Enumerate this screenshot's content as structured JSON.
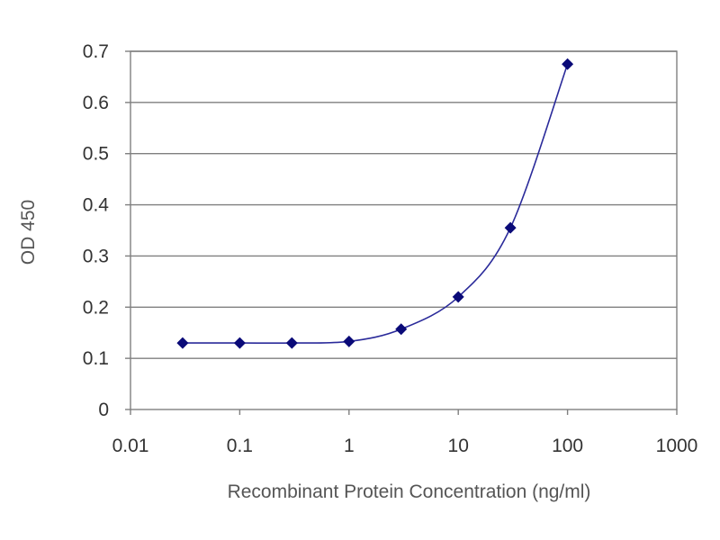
{
  "chart_data": {
    "type": "scatter",
    "title": "",
    "xlabel": "Recombinant Protein Concentration (ng/ml)",
    "ylabel": "OD 450",
    "x_scale": "log",
    "xlim": [
      0.01,
      1000
    ],
    "ylim": [
      0,
      0.7
    ],
    "x_ticks": [
      0.01,
      0.1,
      1,
      10,
      100,
      1000
    ],
    "x_tick_labels": [
      "0.01",
      "0.1",
      "1",
      "10",
      "100",
      "1000"
    ],
    "y_ticks": [
      0,
      0.1,
      0.2,
      0.3,
      0.4,
      0.5,
      0.6,
      0.7
    ],
    "y_tick_labels": [
      "0",
      "0.1",
      "0.2",
      "0.3",
      "0.4",
      "0.5",
      "0.6",
      "0.7"
    ],
    "grid": "horizontal",
    "legend": "none",
    "fit_line": "smooth curve through points",
    "series": [
      {
        "x": [
          0.03,
          0.1,
          0.3,
          1,
          3,
          10,
          30,
          100
        ],
        "y": [
          0.13,
          0.13,
          0.13,
          0.133,
          0.157,
          0.22,
          0.355,
          0.675
        ]
      }
    ],
    "colors": {
      "marker": "#0a0a78",
      "curve": "#2a2a9a",
      "grid": "#7f7f7f",
      "frame": "#7f7f7f"
    }
  }
}
